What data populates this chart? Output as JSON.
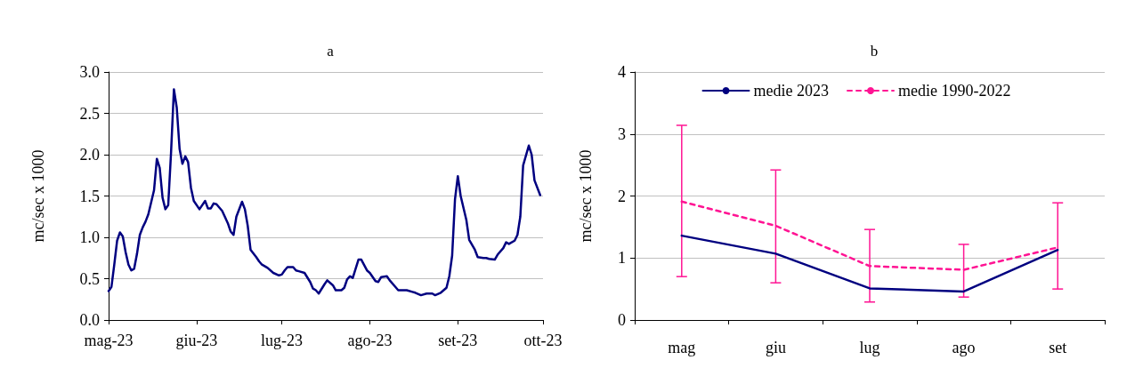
{
  "chart_data": [
    {
      "type": "line",
      "title": "a",
      "ylabel": "mc/sec x 1000",
      "xlim": [
        "2023-05-01",
        "2023-10-01"
      ],
      "xticks": [
        {
          "value": "2023-05-01",
          "label": "mag-23"
        },
        {
          "value": "2023-06-01",
          "label": "giu-23"
        },
        {
          "value": "2023-07-01",
          "label": "lug-23"
        },
        {
          "value": "2023-08-01",
          "label": "ago-23"
        },
        {
          "value": "2023-09-01",
          "label": "set-23"
        },
        {
          "value": "2023-10-01",
          "label": "ott-23"
        }
      ],
      "ylim": [
        0,
        3
      ],
      "yticks": [
        {
          "value": 0,
          "label": "0.0"
        },
        {
          "value": 0.5,
          "label": "0.5"
        },
        {
          "value": 1,
          "label": "1.0"
        },
        {
          "value": 1.5,
          "label": "1.5"
        },
        {
          "value": 2,
          "label": "2.0"
        },
        {
          "value": 2.5,
          "label": "2.5"
        },
        {
          "value": 3,
          "label": "3.0"
        }
      ],
      "grid": "y",
      "marker": "none",
      "line_style": "solid",
      "series": [
        {
          "color": "#000080",
          "x": [
            "2023-05-01",
            "2023-05-02",
            "2023-05-03",
            "2023-05-04",
            "2023-05-05",
            "2023-05-06",
            "2023-05-07",
            "2023-05-08",
            "2023-05-09",
            "2023-05-10",
            "2023-05-11",
            "2023-05-12",
            "2023-05-13",
            "2023-05-14",
            "2023-05-15",
            "2023-05-17",
            "2023-05-18",
            "2023-05-19",
            "2023-05-20",
            "2023-05-21",
            "2023-05-22",
            "2023-05-23",
            "2023-05-24",
            "2023-05-25",
            "2023-05-26",
            "2023-05-27",
            "2023-05-28",
            "2023-05-29",
            "2023-05-30",
            "2023-05-31",
            "2023-06-02",
            "2023-06-04",
            "2023-06-05",
            "2023-06-06",
            "2023-06-07",
            "2023-06-08",
            "2023-06-10",
            "2023-06-12",
            "2023-06-13",
            "2023-06-14",
            "2023-06-15",
            "2023-06-17",
            "2023-06-18",
            "2023-06-19",
            "2023-06-20",
            "2023-06-22",
            "2023-06-23",
            "2023-06-24",
            "2023-06-26",
            "2023-06-28",
            "2023-06-30",
            "2023-07-01",
            "2023-07-02",
            "2023-07-03",
            "2023-07-05",
            "2023-07-06",
            "2023-07-07",
            "2023-07-09",
            "2023-07-11",
            "2023-07-12",
            "2023-07-13",
            "2023-07-14",
            "2023-07-16",
            "2023-07-17",
            "2023-07-19",
            "2023-07-20",
            "2023-07-22",
            "2023-07-23",
            "2023-07-24",
            "2023-07-25",
            "2023-07-26",
            "2023-07-28",
            "2023-07-29",
            "2023-07-31",
            "2023-08-01",
            "2023-08-03",
            "2023-08-04",
            "2023-08-05",
            "2023-08-07",
            "2023-08-08",
            "2023-08-10",
            "2023-08-11",
            "2023-08-14",
            "2023-08-16",
            "2023-08-17",
            "2023-08-19",
            "2023-08-21",
            "2023-08-23",
            "2023-08-24",
            "2023-08-26",
            "2023-08-28",
            "2023-08-29",
            "2023-08-30",
            "2023-08-31",
            "2023-09-01",
            "2023-09-02",
            "2023-09-04",
            "2023-09-05",
            "2023-09-07",
            "2023-09-08",
            "2023-09-10",
            "2023-09-11",
            "2023-09-12",
            "2023-09-14",
            "2023-09-15",
            "2023-09-17",
            "2023-09-18",
            "2023-09-19",
            "2023-09-21",
            "2023-09-22",
            "2023-09-23",
            "2023-09-24",
            "2023-09-26",
            "2023-09-27",
            "2023-09-28",
            "2023-09-30"
          ],
          "values": [
            0.35,
            0.4,
            0.67,
            0.96,
            1.06,
            1.01,
            0.82,
            0.67,
            0.6,
            0.62,
            0.8,
            1.03,
            1.12,
            1.19,
            1.28,
            1.57,
            1.95,
            1.84,
            1.48,
            1.34,
            1.39,
            2.03,
            2.79,
            2.57,
            2.07,
            1.89,
            1.98,
            1.91,
            1.6,
            1.44,
            1.34,
            1.44,
            1.35,
            1.35,
            1.41,
            1.4,
            1.32,
            1.17,
            1.07,
            1.03,
            1.25,
            1.43,
            1.34,
            1.14,
            0.85,
            0.76,
            0.71,
            0.67,
            0.63,
            0.57,
            0.54,
            0.55,
            0.6,
            0.64,
            0.64,
            0.6,
            0.59,
            0.57,
            0.46,
            0.38,
            0.36,
            0.32,
            0.43,
            0.48,
            0.42,
            0.36,
            0.36,
            0.39,
            0.49,
            0.53,
            0.51,
            0.73,
            0.73,
            0.6,
            0.57,
            0.47,
            0.46,
            0.52,
            0.53,
            0.48,
            0.4,
            0.36,
            0.36,
            0.34,
            0.33,
            0.3,
            0.32,
            0.32,
            0.3,
            0.33,
            0.39,
            0.53,
            0.78,
            1.46,
            1.74,
            1.5,
            1.21,
            0.97,
            0.85,
            0.76,
            0.75,
            0.75,
            0.74,
            0.73,
            0.79,
            0.87,
            0.94,
            0.92,
            0.96,
            1.03,
            1.25,
            1.87,
            2.11,
            2.0,
            1.69,
            1.51
          ]
        }
      ]
    },
    {
      "type": "line",
      "title": "b",
      "ylabel": "mc/sec x 1000",
      "categories": [
        "mag",
        "giu",
        "lug",
        "ago",
        "set"
      ],
      "ylim": [
        0,
        4
      ],
      "yticks": [
        0,
        1,
        2,
        3,
        4
      ],
      "grid": "y",
      "legend": "top",
      "marker": "none",
      "series": [
        {
          "name": "medie 2023",
          "color": "#000080",
          "line_style": "solid",
          "values": [
            1.36,
            1.07,
            0.51,
            0.46,
            1.13
          ]
        },
        {
          "name": "medie 1990-2022",
          "color": "#ff1493",
          "line_style": "dashed",
          "values": [
            1.91,
            1.52,
            0.87,
            0.81,
            1.17
          ],
          "errors": [
            [
              0.7,
              3.14
            ],
            [
              0.6,
              2.42
            ],
            [
              0.29,
              1.46
            ],
            [
              0.37,
              1.22
            ],
            [
              0.5,
              1.89
            ]
          ]
        }
      ]
    }
  ]
}
